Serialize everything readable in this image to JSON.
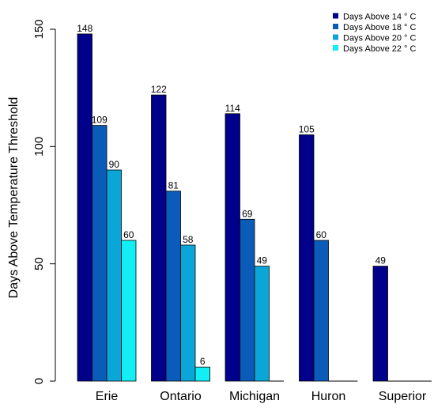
{
  "chart_data": {
    "type": "bar",
    "categories": [
      "Erie",
      "Ontario",
      "Michigan",
      "Huron",
      "Superior"
    ],
    "series": [
      {
        "name": "Days Above 14 ° C",
        "color": "#00008B",
        "values": [
          148,
          122,
          114,
          105,
          49
        ]
      },
      {
        "name": "Days Above 18 ° C",
        "color": "#0A5CB8",
        "values": [
          109,
          81,
          69,
          60,
          0
        ]
      },
      {
        "name": "Days Above 20 ° C",
        "color": "#0AA6D8",
        "values": [
          90,
          58,
          49,
          0,
          0
        ]
      },
      {
        "name": "Days Above 22 ° C",
        "color": "#12EEF4",
        "values": [
          60,
          6,
          0,
          0,
          0
        ]
      }
    ],
    "value_labels": [
      [
        "148",
        "122",
        "114",
        "105",
        "49"
      ],
      [
        "109",
        "81",
        "69",
        "60",
        ""
      ],
      [
        "90",
        "58",
        "49",
        "",
        ""
      ],
      [
        "60",
        "6",
        "",
        "",
        ""
      ]
    ],
    "ylabel": "Days Above Temperature Threshold",
    "xlabel": "",
    "title": "",
    "ylim": [
      0,
      150
    ],
    "yticks": [
      0,
      50,
      100,
      150
    ],
    "ytick_labels": [
      "0",
      "50",
      "100",
      "150"
    ],
    "grid": false,
    "legend": "top-right"
  }
}
